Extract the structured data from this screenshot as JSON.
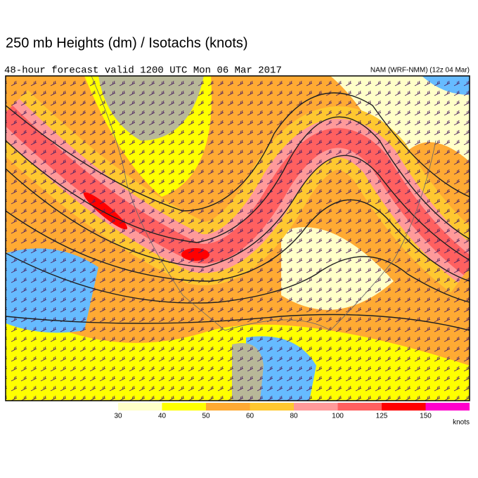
{
  "header": {
    "title": "250 mb Heights (dm) / Isotachs (knots)",
    "subtitle": "48-hour forecast valid 1200 UTC Mon 06 Mar 2017",
    "model": "NAM (WRF-NMM) (12z 04 Mar)"
  },
  "legend": {
    "labels": [
      30,
      40,
      50,
      60,
      80,
      100,
      125,
      150
    ],
    "colors": [
      "#ffffc8",
      "#ffff00",
      "#ffaa33",
      "#ffc830",
      "#ff9a9a",
      "#ff6060",
      "#ff0000",
      "#ff00cc"
    ],
    "unit": "knots"
  }
}
